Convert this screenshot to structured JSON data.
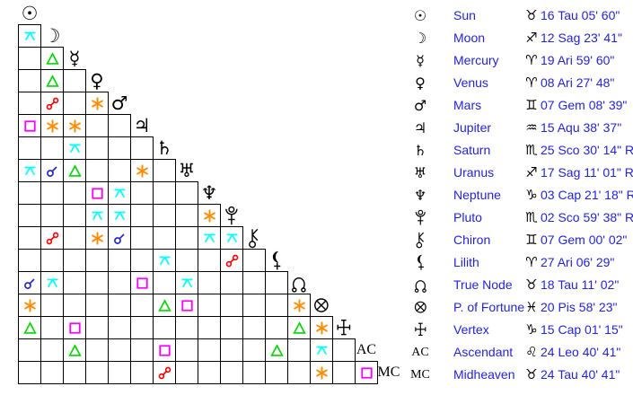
{
  "page": {
    "background": "#ffffff",
    "grid_line_color": "#000000",
    "text_color": "#2222e6"
  },
  "aspect_styles": {
    "conjunction": {
      "color": "#2020d6"
    },
    "sextile": {
      "color": "#ff8c00"
    },
    "square": {
      "color": "#ff00ff"
    },
    "trine": {
      "color": "#00d900"
    },
    "opposition": {
      "color": "#ff0000"
    },
    "quincunx": {
      "color": "#00ffff"
    }
  },
  "planets": [
    {
      "label": "Sun",
      "glyph": "☉",
      "sign": "♉",
      "position": "16 Tau 05' 60\"",
      "aspects": []
    },
    {
      "label": "Moon",
      "glyph": "☽",
      "sign": "♐",
      "position": "12 Sag 23' 41\"",
      "aspects": [
        "quincunx"
      ]
    },
    {
      "label": "Mercury",
      "glyph": "☿",
      "sign": "♈",
      "position": "19 Ari 59' 60\"",
      "aspects": [
        null,
        "trine"
      ]
    },
    {
      "label": "Venus",
      "glyph": "♀",
      "sign": "♈",
      "position": "08 Ari 27' 48\"",
      "aspects": [
        null,
        "trine",
        null
      ]
    },
    {
      "label": "Mars",
      "glyph": "♂",
      "sign": "♊",
      "position": "07 Gem 08' 39\"",
      "aspects": [
        null,
        "opposition",
        null,
        "sextile"
      ]
    },
    {
      "label": "Jupiter",
      "glyph": "♃",
      "sign": "♒",
      "position": "15 Aqu 38' 37\"",
      "aspects": [
        "square",
        "sextile",
        "sextile",
        null,
        null
      ]
    },
    {
      "label": "Saturn",
      "glyph": "♄",
      "sign": "♏",
      "position": "25 Sco 30' 14\" R",
      "aspects": [
        null,
        null,
        "quincunx",
        null,
        null,
        null
      ]
    },
    {
      "label": "Uranus",
      "glyph": "♅",
      "sign": "♐",
      "position": "17 Sag 11' 01\" R",
      "aspects": [
        "quincunx",
        "conjunction",
        "trine",
        null,
        null,
        "sextile",
        null
      ]
    },
    {
      "label": "Neptune",
      "glyph": "♆",
      "sign": "♑",
      "position": "03 Cap 21' 18\" R",
      "aspects": [
        null,
        null,
        null,
        "square",
        "quincunx",
        null,
        null,
        null
      ]
    },
    {
      "label": "Pluto",
      "glyph": "svg:pluto",
      "sign": "♏",
      "position": "02 Sco 59' 38\" R",
      "aspects": [
        null,
        null,
        null,
        "quincunx",
        "quincunx",
        null,
        null,
        null,
        "sextile"
      ]
    },
    {
      "label": "Chiron",
      "glyph": "svg:chiron",
      "sign": "♊",
      "position": "07 Gem 00' 02\"",
      "aspects": [
        null,
        "opposition",
        null,
        "sextile",
        "conjunction",
        null,
        null,
        null,
        "quincunx",
        "quincunx"
      ]
    },
    {
      "label": "Lilith",
      "glyph": "svg:lilith",
      "sign": "♈",
      "position": "27 Ari 06' 29\"",
      "aspects": [
        null,
        null,
        null,
        null,
        null,
        null,
        "quincunx",
        null,
        null,
        "opposition",
        null
      ]
    },
    {
      "label": "True Node",
      "glyph": "svg:node",
      "sign": "♉",
      "position": "18 Tau 11' 02\"",
      "aspects": [
        "conjunction",
        "quincunx",
        null,
        null,
        null,
        "square",
        null,
        "quincunx",
        null,
        null,
        null,
        null
      ]
    },
    {
      "label": "P. of Fortune",
      "glyph": "svg:fortune",
      "sign": "♓",
      "position": "20 Pis 58' 23\"",
      "aspects": [
        "sextile",
        null,
        null,
        null,
        null,
        null,
        "trine",
        "square",
        null,
        null,
        null,
        null,
        "sextile"
      ]
    },
    {
      "label": "Vertex",
      "glyph": "svg:vertex",
      "sign": "♑",
      "position": "15 Cap 01' 15\"",
      "aspects": [
        "trine",
        null,
        "square",
        null,
        null,
        null,
        null,
        null,
        null,
        null,
        null,
        null,
        "trine",
        "sextile"
      ]
    },
    {
      "label": "Ascendant",
      "glyph": "text:AC",
      "sign": "♌",
      "position": "24 Leo 40' 41\"",
      "aspects": [
        null,
        null,
        "trine",
        null,
        null,
        null,
        "square",
        null,
        null,
        null,
        null,
        "trine",
        null,
        "quincunx",
        null
      ]
    },
    {
      "label": "Midheaven",
      "glyph": "text:MC",
      "sign": "♉",
      "position": "24 Tau 40' 41\"",
      "aspects": [
        null,
        null,
        null,
        null,
        null,
        null,
        "opposition",
        null,
        null,
        null,
        null,
        null,
        null,
        "sextile",
        null,
        "square"
      ]
    }
  ]
}
